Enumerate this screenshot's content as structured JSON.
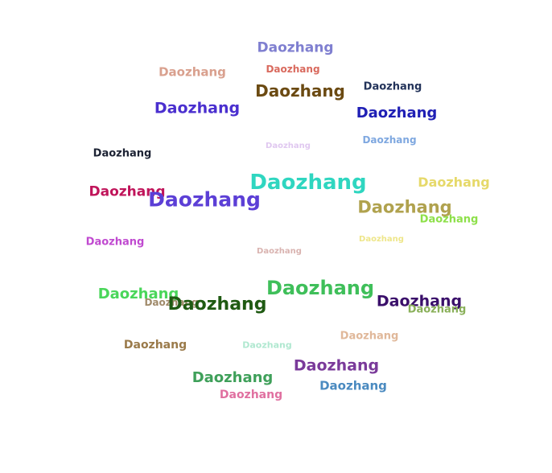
{
  "word_cloud": {
    "words": [
      {
        "text": "Daozhang",
        "color": "#7f7fd0"
      },
      {
        "text": "Daozhang",
        "color": "#d96a5e"
      },
      {
        "text": "Daozhang",
        "color": "#d9a08e"
      },
      {
        "text": "Daozhang",
        "color": "#6b4a12"
      },
      {
        "text": "Daozhang",
        "color": "#23335a"
      },
      {
        "text": "Daozhang",
        "color": "#4a2fcf"
      },
      {
        "text": "Daozhang",
        "color": "#1f1fb5"
      },
      {
        "text": "Daozhang",
        "color": "#7fa8e0"
      },
      {
        "text": "Daozhang",
        "color": "#e0c8f0"
      },
      {
        "text": "Daozhang",
        "color": "#1c2233"
      },
      {
        "text": "Daozhang",
        "color": "#2fd6c0"
      },
      {
        "text": "Daozhang",
        "color": "#e6d96a"
      },
      {
        "text": "Daozhang",
        "color": "#c0145a"
      },
      {
        "text": "Daozhang",
        "color": "#5c3fd6"
      },
      {
        "text": "Daozhang",
        "color": "#b0a24e"
      },
      {
        "text": "Daozhang",
        "color": "#8ee04a"
      },
      {
        "text": "Daozhang",
        "color": "#c04ad0"
      },
      {
        "text": "Daozhang",
        "color": "#eee68a"
      },
      {
        "text": "Daozhang",
        "color": "#d9b3b0"
      },
      {
        "text": "Daozhang",
        "color": "#3fbf5a"
      },
      {
        "text": "Daozhang",
        "color": "#4ad65a"
      },
      {
        "text": "Daozhang",
        "color": "#a08a6a"
      },
      {
        "text": "Daozhang",
        "color": "#1f5a12"
      },
      {
        "text": "Daozhang",
        "color": "#3a0f6a"
      },
      {
        "text": "Daozhang",
        "color": "#8ab05a"
      },
      {
        "text": "Daozhang",
        "color": "#9a7a4a"
      },
      {
        "text": "Daozhang",
        "color": "#b0e8d0"
      },
      {
        "text": "Daozhang",
        "color": "#e0b89a"
      },
      {
        "text": "Daozhang",
        "color": "#7a3a9a"
      },
      {
        "text": "Daozhang",
        "color": "#3fa05a"
      },
      {
        "text": "Daozhang",
        "color": "#4a8ac0"
      },
      {
        "text": "Daozhang",
        "color": "#e070a0"
      }
    ]
  }
}
